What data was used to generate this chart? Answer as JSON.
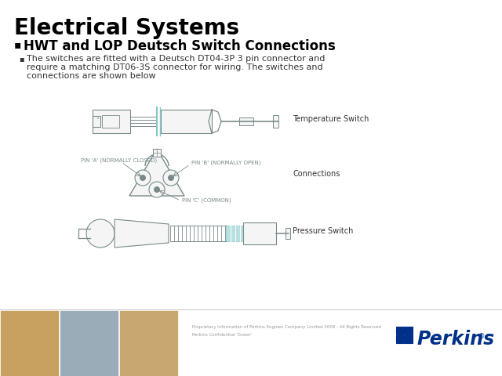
{
  "title": "Electrical Systems",
  "bullet1": "HWT and LOP Deutsch Switch Connections",
  "bullet2_line1": "The switches are fitted with a Deutsch DT04-3P 3 pin connector and",
  "bullet2_line2": "require a matching DT06-3S connector for wiring. The switches and",
  "bullet2_line3": "connections are shown below",
  "label_temp": "Temperature Switch",
  "label_conn": "Connections",
  "label_press": "Pressure Switch",
  "pin_a": "PIN 'A' (NORMALLY CLOSED)",
  "pin_b": "PIN 'B' (NORMALLY OPEN)",
  "pin_c": "PIN 'C' (COMMON)",
  "footer_text1": "Proprietary Information of Perkins Engines Company Limited 2009 - All Rights Reserved",
  "footer_text2": "Perkins Confidential 'Green'",
  "perkins_text": "Perkins",
  "bg_color": "#ffffff",
  "title_color": "#000000",
  "bullet1_color": "#000000",
  "body_color": "#333333",
  "diagram_color": "#7a8a8a",
  "teal_color": "#7ec8c8",
  "perkins_blue": "#003087",
  "footer_gray": "#999999",
  "footer_line_color": "#cccccc",
  "photo1_color": "#c8a060",
  "photo2_color": "#9aacb8",
  "photo3_color": "#c8a870"
}
